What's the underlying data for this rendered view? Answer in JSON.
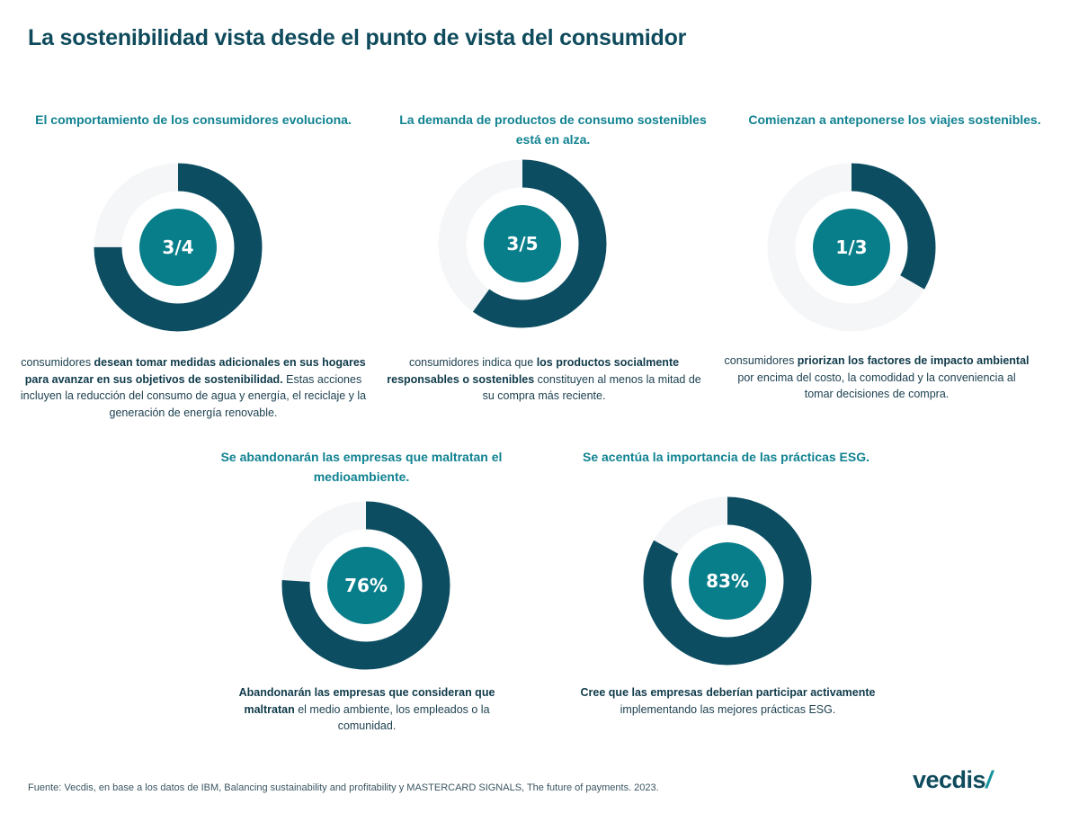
{
  "page_title": "La sostenibilidad vista desde el punto de vista del consumidor",
  "colors": {
    "dark_teal": "#0c4d61",
    "mid_teal": "#087e8a",
    "light_track": "#f4f6f8",
    "title_teal": "#108291"
  },
  "chart_data": [
    {
      "type": "pie",
      "title": "El comportamiento de los consumidores evoluciona.",
      "center_label": "3/4",
      "value": 0.75,
      "desc": [
        {
          "text": "consumidores ",
          "bold": false
        },
        {
          "text": "desean tomar medidas adicionales en sus hogares para avanzar en sus objetivos de sostenibilidad.",
          "bold": true
        },
        {
          "text": " Estas acciones incluyen la reducción del consumo de agua y energía, el reciclaje y la generación de energía renovable.",
          "bold": false
        }
      ]
    },
    {
      "type": "pie",
      "title": "La demanda de productos de consumo sostenibles está en alza.",
      "center_label": "3/5",
      "value": 0.6,
      "desc": [
        {
          "text": "consumidores indica que ",
          "bold": false
        },
        {
          "text": "los productos socialmente responsables o sostenibles",
          "bold": true
        },
        {
          "text": " constituyen al menos la mitad de su compra más reciente.",
          "bold": false
        }
      ]
    },
    {
      "type": "pie",
      "title": "Comienzan a anteponerse los viajes sostenibles.",
      "center_label": "1/3",
      "value": 0.333,
      "desc": [
        {
          "text": "consumidores ",
          "bold": false
        },
        {
          "text": "priorizan los factores de impacto ambiental",
          "bold": true
        },
        {
          "text": " por encima del costo, la comodidad y la conveniencia al tomar decisiones de compra.",
          "bold": false
        }
      ]
    },
    {
      "type": "pie",
      "title": "Se abandonarán las empresas que maltratan el medioambiente.",
      "center_label": "76%",
      "value": 0.76,
      "desc": [
        {
          "text": "Abandonarán las empresas que consideran que maltratan",
          "bold": true
        },
        {
          "text": " el medio ambiente, los empleados o la comunidad.",
          "bold": false
        }
      ]
    },
    {
      "type": "pie",
      "title": "Se acentúa la importancia de las prácticas ESG.",
      "center_label": "83%",
      "value": 0.83,
      "desc": [
        {
          "text": "Cree que las empresas deberían participar activamente",
          "bold": true
        },
        {
          "text": " implementando las mejores prácticas ESG.",
          "bold": false
        }
      ]
    }
  ],
  "source": "Fuente: Vecdis, en base a los datos de IBM, Balancing sustainability and profitability y MASTERCARD SIGNALS, The future of payments. 2023.",
  "logo": {
    "text": "vecdis",
    "mark": "/"
  }
}
